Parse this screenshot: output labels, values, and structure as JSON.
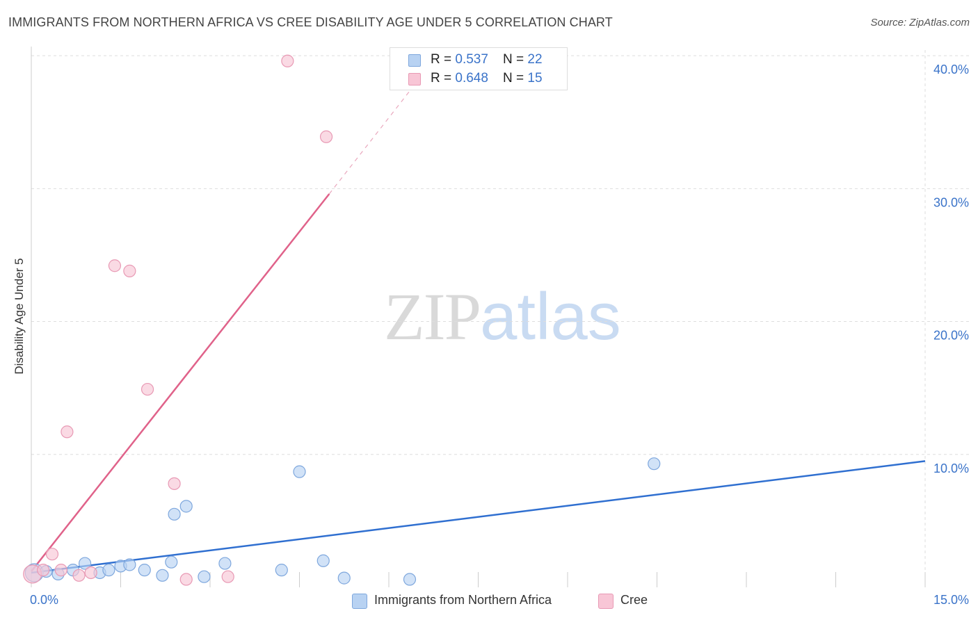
{
  "header": {
    "title": "IMMIGRANTS FROM NORTHERN AFRICA VS CREE DISABILITY AGE UNDER 5 CORRELATION CHART",
    "source": "Source: ZipAtlas.com"
  },
  "legend_top": {
    "blue": {
      "r_label": "R = ",
      "r_value": "0.537",
      "n_label": "N = ",
      "n_value": "22"
    },
    "pink": {
      "r_label": "R = ",
      "r_value": "0.648",
      "n_label": "N = ",
      "n_value": "15"
    }
  },
  "legend_bottom": {
    "blue_label": "Immigrants from Northern Africa",
    "pink_label": "Cree"
  },
  "watermark": {
    "zip": "ZIP",
    "atlas": "atlas"
  },
  "colors": {
    "blue_fill": "#b8d2f2",
    "blue_stroke": "#7ea7dd",
    "blue_line": "#2f6fd0",
    "pink_fill": "#f8c6d6",
    "pink_stroke": "#e899b4",
    "pink_line": "#e0628a",
    "grid": "#dddddd",
    "tick_label": "#3a73c9"
  },
  "chart_data": {
    "type": "scatter",
    "title": "IMMIGRANTS FROM NORTHERN AFRICA VS CREE DISABILITY AGE UNDER 5 CORRELATION CHART",
    "xlabel": "",
    "ylabel": "Disability Age Under 5",
    "xlim": [
      0,
      15
    ],
    "ylim": [
      0,
      41
    ],
    "x_tick_labels": [
      "0.0%",
      "15.0%"
    ],
    "y_ticks": [
      10,
      20,
      30,
      40
    ],
    "y_tick_labels": [
      "10.0%",
      "20.0%",
      "30.0%",
      "40.0%"
    ],
    "grid": true,
    "legend_position": "top-center",
    "series": [
      {
        "name": "Immigrants from Northern Africa",
        "color": "blue",
        "R": 0.537,
        "N": 22,
        "points": [
          [
            0.05,
            1.1
          ],
          [
            0.25,
            1.2
          ],
          [
            0.45,
            1.0
          ],
          [
            0.9,
            1.8
          ],
          [
            1.15,
            1.1
          ],
          [
            1.3,
            1.3
          ],
          [
            0.7,
            1.3
          ],
          [
            1.5,
            1.6
          ],
          [
            1.65,
            1.7
          ],
          [
            1.9,
            1.3
          ],
          [
            2.2,
            0.9
          ],
          [
            2.35,
            1.9
          ],
          [
            2.4,
            5.5
          ],
          [
            2.6,
            6.1
          ],
          [
            2.9,
            0.8
          ],
          [
            3.25,
            1.8
          ],
          [
            4.2,
            1.3
          ],
          [
            4.5,
            8.7
          ],
          [
            4.9,
            2.0
          ],
          [
            5.25,
            0.7
          ],
          [
            6.35,
            0.6
          ],
          [
            10.45,
            9.3
          ]
        ],
        "trend": {
          "x": [
            0,
            15
          ],
          "y": [
            1.1,
            9.5
          ]
        }
      },
      {
        "name": "Cree",
        "color": "pink",
        "R": 0.648,
        "N": 15,
        "points": [
          [
            0.02,
            1.0
          ],
          [
            0.2,
            1.3
          ],
          [
            0.35,
            2.5
          ],
          [
            0.5,
            1.3
          ],
          [
            0.6,
            11.7
          ],
          [
            0.8,
            0.9
          ],
          [
            1.0,
            1.1
          ],
          [
            1.4,
            24.2
          ],
          [
            1.65,
            23.8
          ],
          [
            1.95,
            14.9
          ],
          [
            2.4,
            7.8
          ],
          [
            2.6,
            0.6
          ],
          [
            3.3,
            0.8
          ],
          [
            4.3,
            39.6
          ],
          [
            4.95,
            33.9
          ]
        ],
        "trend": {
          "x": [
            0,
            5
          ],
          "y": [
            1.2,
            29.6
          ]
        },
        "trend_extension": {
          "x": [
            5,
            6.5
          ],
          "y": [
            29.6,
            38.2
          ]
        }
      }
    ]
  }
}
